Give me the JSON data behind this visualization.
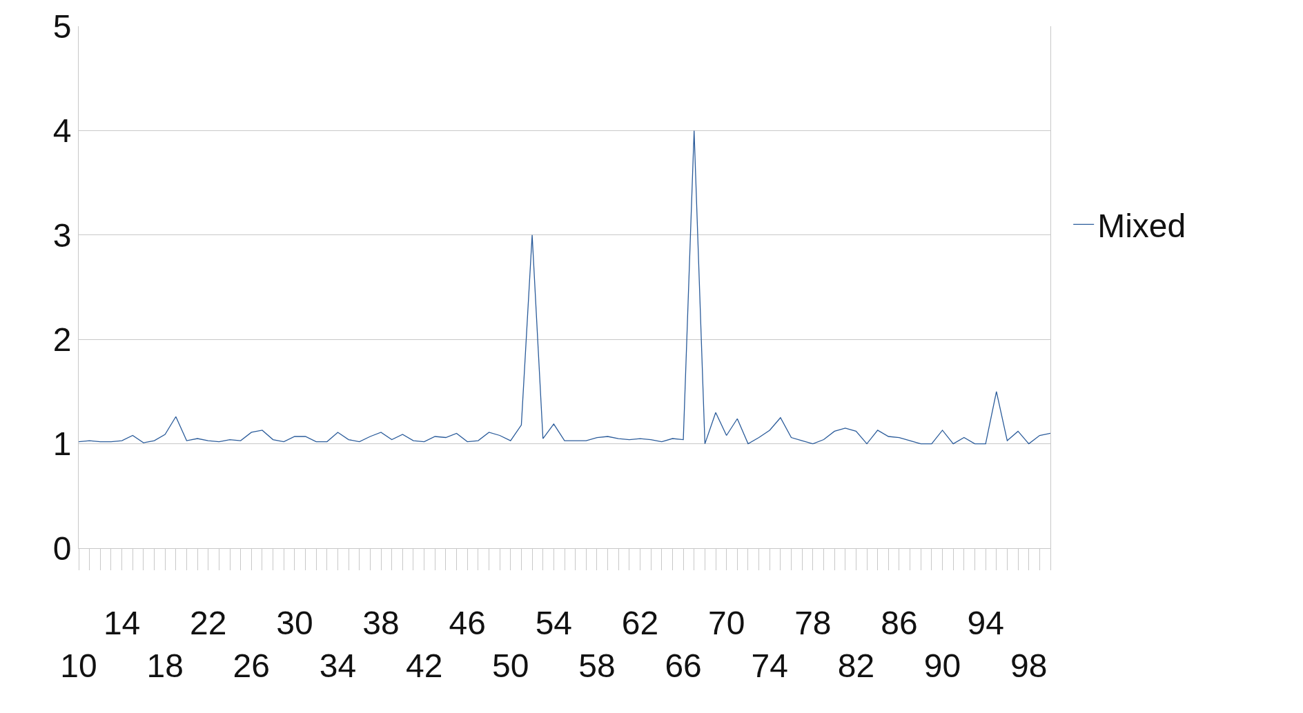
{
  "chart_data": {
    "type": "line",
    "categories": [
      "10",
      null,
      null,
      null,
      "14",
      null,
      null,
      null,
      "18",
      null,
      null,
      null,
      "22",
      null,
      null,
      null,
      "26",
      null,
      null,
      null,
      "30",
      null,
      null,
      null,
      "34",
      null,
      null,
      null,
      "38",
      null,
      null,
      null,
      "42",
      null,
      null,
      null,
      "46",
      null,
      null,
      null,
      "50",
      null,
      null,
      null,
      "54",
      null,
      null,
      null,
      "58",
      null,
      null,
      null,
      "62",
      null,
      null,
      null,
      "66",
      null,
      null,
      null,
      "70",
      null,
      null,
      null,
      "74",
      null,
      null,
      null,
      "78",
      null,
      null,
      null,
      "82",
      null,
      null,
      null,
      "86",
      null,
      null,
      null,
      "90",
      null,
      null,
      null,
      "94",
      null,
      null,
      null,
      "98",
      null,
      null
    ],
    "series": [
      {
        "name": "Mixed",
        "color": "#2a5b9a",
        "values": [
          1.02,
          1.03,
          1.02,
          1.02,
          1.03,
          1.08,
          1.01,
          1.03,
          1.09,
          1.26,
          1.03,
          1.05,
          1.03,
          1.02,
          1.04,
          1.03,
          1.11,
          1.13,
          1.04,
          1.02,
          1.07,
          1.07,
          1.02,
          1.02,
          1.11,
          1.04,
          1.02,
          1.07,
          1.11,
          1.04,
          1.09,
          1.03,
          1.02,
          1.07,
          1.06,
          1.1,
          1.02,
          1.03,
          1.11,
          1.08,
          1.03,
          1.18,
          3.0,
          1.05,
          1.19,
          1.03,
          1.03,
          1.03,
          1.06,
          1.07,
          1.05,
          1.04,
          1.05,
          1.04,
          1.02,
          1.05,
          1.04,
          4.0,
          1.0,
          1.3,
          1.08,
          1.24,
          1.0,
          1.06,
          1.13,
          1.25,
          1.06,
          1.03,
          1.0,
          1.04,
          1.12,
          1.15,
          1.12,
          1.0,
          1.13,
          1.07,
          1.06,
          1.03,
          1.0,
          1.0,
          1.13,
          1.0,
          1.06,
          1.0,
          1.0,
          1.5,
          1.03,
          1.12,
          1.0,
          1.08,
          1.1
        ]
      }
    ],
    "ylim": [
      0,
      5
    ],
    "yticks": [
      0,
      1,
      2,
      3,
      4,
      5
    ],
    "grid": "y",
    "legend": "right",
    "marker": "none",
    "line_style": "solid"
  }
}
